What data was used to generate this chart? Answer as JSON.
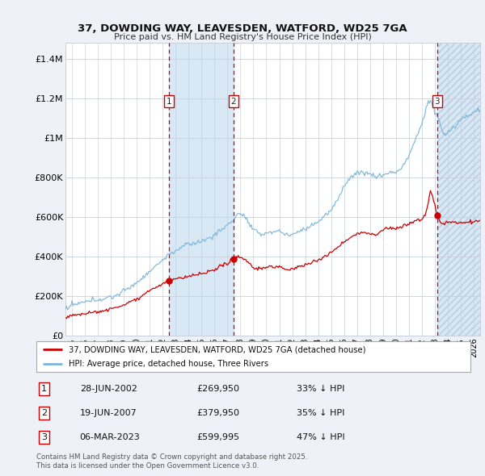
{
  "title_line1": "37, DOWDING WAY, LEAVESDEN, WATFORD, WD25 7GA",
  "title_line2": "Price paid vs. HM Land Registry's House Price Index (HPI)",
  "red_label": "37, DOWDING WAY, LEAVESDEN, WATFORD, WD25 7GA (detached house)",
  "blue_label": "HPI: Average price, detached house, Three Rivers",
  "transactions": [
    {
      "num": 1,
      "date": "28-JUN-2002",
      "price": "£269,950",
      "pct": "33% ↓ HPI",
      "year_x": 2002.49
    },
    {
      "num": 2,
      "date": "19-JUN-2007",
      "price": "£379,950",
      "pct": "35% ↓ HPI",
      "year_x": 2007.47
    },
    {
      "num": 3,
      "date": "06-MAR-2023",
      "price": "£599,995",
      "pct": "47% ↓ HPI",
      "year_x": 2023.18
    }
  ],
  "footer": "Contains HM Land Registry data © Crown copyright and database right 2025.\nThis data is licensed under the Open Government Licence v3.0.",
  "xlim": [
    1994.5,
    2026.5
  ],
  "ylim": [
    0,
    1480000
  ],
  "yticks": [
    0,
    200000,
    400000,
    600000,
    800000,
    1000000,
    1200000,
    1400000
  ],
  "ytick_labels": [
    "£0",
    "£200K",
    "£400K",
    "£600K",
    "£800K",
    "£1M",
    "£1.2M",
    "£1.4M"
  ],
  "xticks": [
    1995,
    1996,
    1997,
    1998,
    1999,
    2000,
    2001,
    2002,
    2003,
    2004,
    2005,
    2006,
    2007,
    2008,
    2009,
    2010,
    2011,
    2012,
    2013,
    2014,
    2015,
    2016,
    2017,
    2018,
    2019,
    2020,
    2021,
    2022,
    2023,
    2024,
    2025,
    2026
  ],
  "bg_color": "#eef2f8",
  "plot_bg": "#ffffff",
  "hpi_color": "#7ab4d8",
  "price_color": "#cc0000",
  "vline_color": "#cc0000",
  "grid_color": "#c8d0dc",
  "shade_color": "#d8e8f5"
}
